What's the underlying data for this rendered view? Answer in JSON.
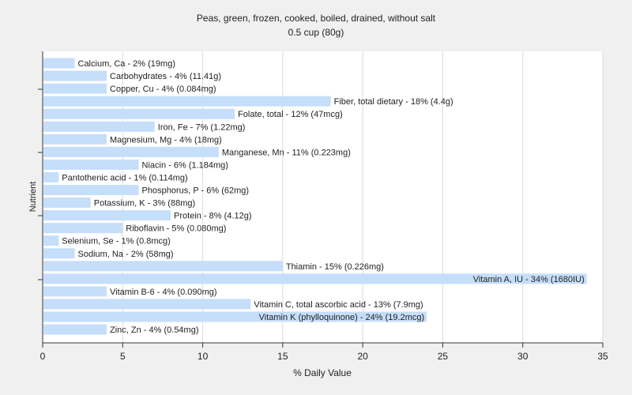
{
  "chart_data": {
    "type": "bar",
    "orientation": "horizontal",
    "title": "Peas, green, frozen, cooked, boiled, drained, without salt",
    "subtitle": "0.5 cup (80g)",
    "xlabel": "% Daily Value",
    "ylabel": "Nutrient",
    "xlim": [
      0,
      35
    ],
    "xticks": [
      0,
      5,
      10,
      15,
      20,
      25,
      30,
      35
    ],
    "grid": true,
    "bar_color": "#c5defa",
    "categories": [
      "Calcium, Ca",
      "Carbohydrates",
      "Copper, Cu",
      "Fiber, total dietary",
      "Folate, total",
      "Iron, Fe",
      "Magnesium, Mg",
      "Manganese, Mn",
      "Niacin",
      "Pantothenic acid",
      "Phosphorus, P",
      "Potassium, K",
      "Protein",
      "Riboflavin",
      "Selenium, Se",
      "Sodium, Na",
      "Thiamin",
      "Vitamin A, IU",
      "Vitamin B-6",
      "Vitamin C, total ascorbic acid",
      "Vitamin K (phylloquinone)",
      "Zinc, Zn"
    ],
    "values": [
      2,
      4,
      4,
      18,
      12,
      7,
      4,
      11,
      6,
      1,
      6,
      3,
      8,
      5,
      1,
      2,
      15,
      34,
      4,
      13,
      24,
      4
    ],
    "labels": [
      "Calcium, Ca - 2% (19mg)",
      "Carbohydrates - 4% (11.41g)",
      "Copper, Cu - 4% (0.084mg)",
      "Fiber, total dietary - 18% (4.4g)",
      "Folate, total - 12% (47mcg)",
      "Iron, Fe - 7% (1.22mg)",
      "Magnesium, Mg - 4% (18mg)",
      "Manganese, Mn - 11% (0.223mg)",
      "Niacin - 6% (1.184mg)",
      "Pantothenic acid - 1% (0.114mg)",
      "Phosphorus, P - 6% (62mg)",
      "Potassium, K - 3% (88mg)",
      "Protein - 8% (4.12g)",
      "Riboflavin - 5% (0.080mg)",
      "Selenium, Se - 1% (0.8mcg)",
      "Sodium, Na - 2% (58mg)",
      "Thiamin - 15% (0.226mg)",
      "Vitamin A, IU - 34% (1680IU)",
      "Vitamin B-6 - 4% (0.090mg)",
      "Vitamin C, total ascorbic acid - 13% (7.9mg)",
      "Vitamin K (phylloquinone) - 24% (19.2mcg)",
      "Zinc, Zn - 4% (0.54mg)"
    ]
  }
}
